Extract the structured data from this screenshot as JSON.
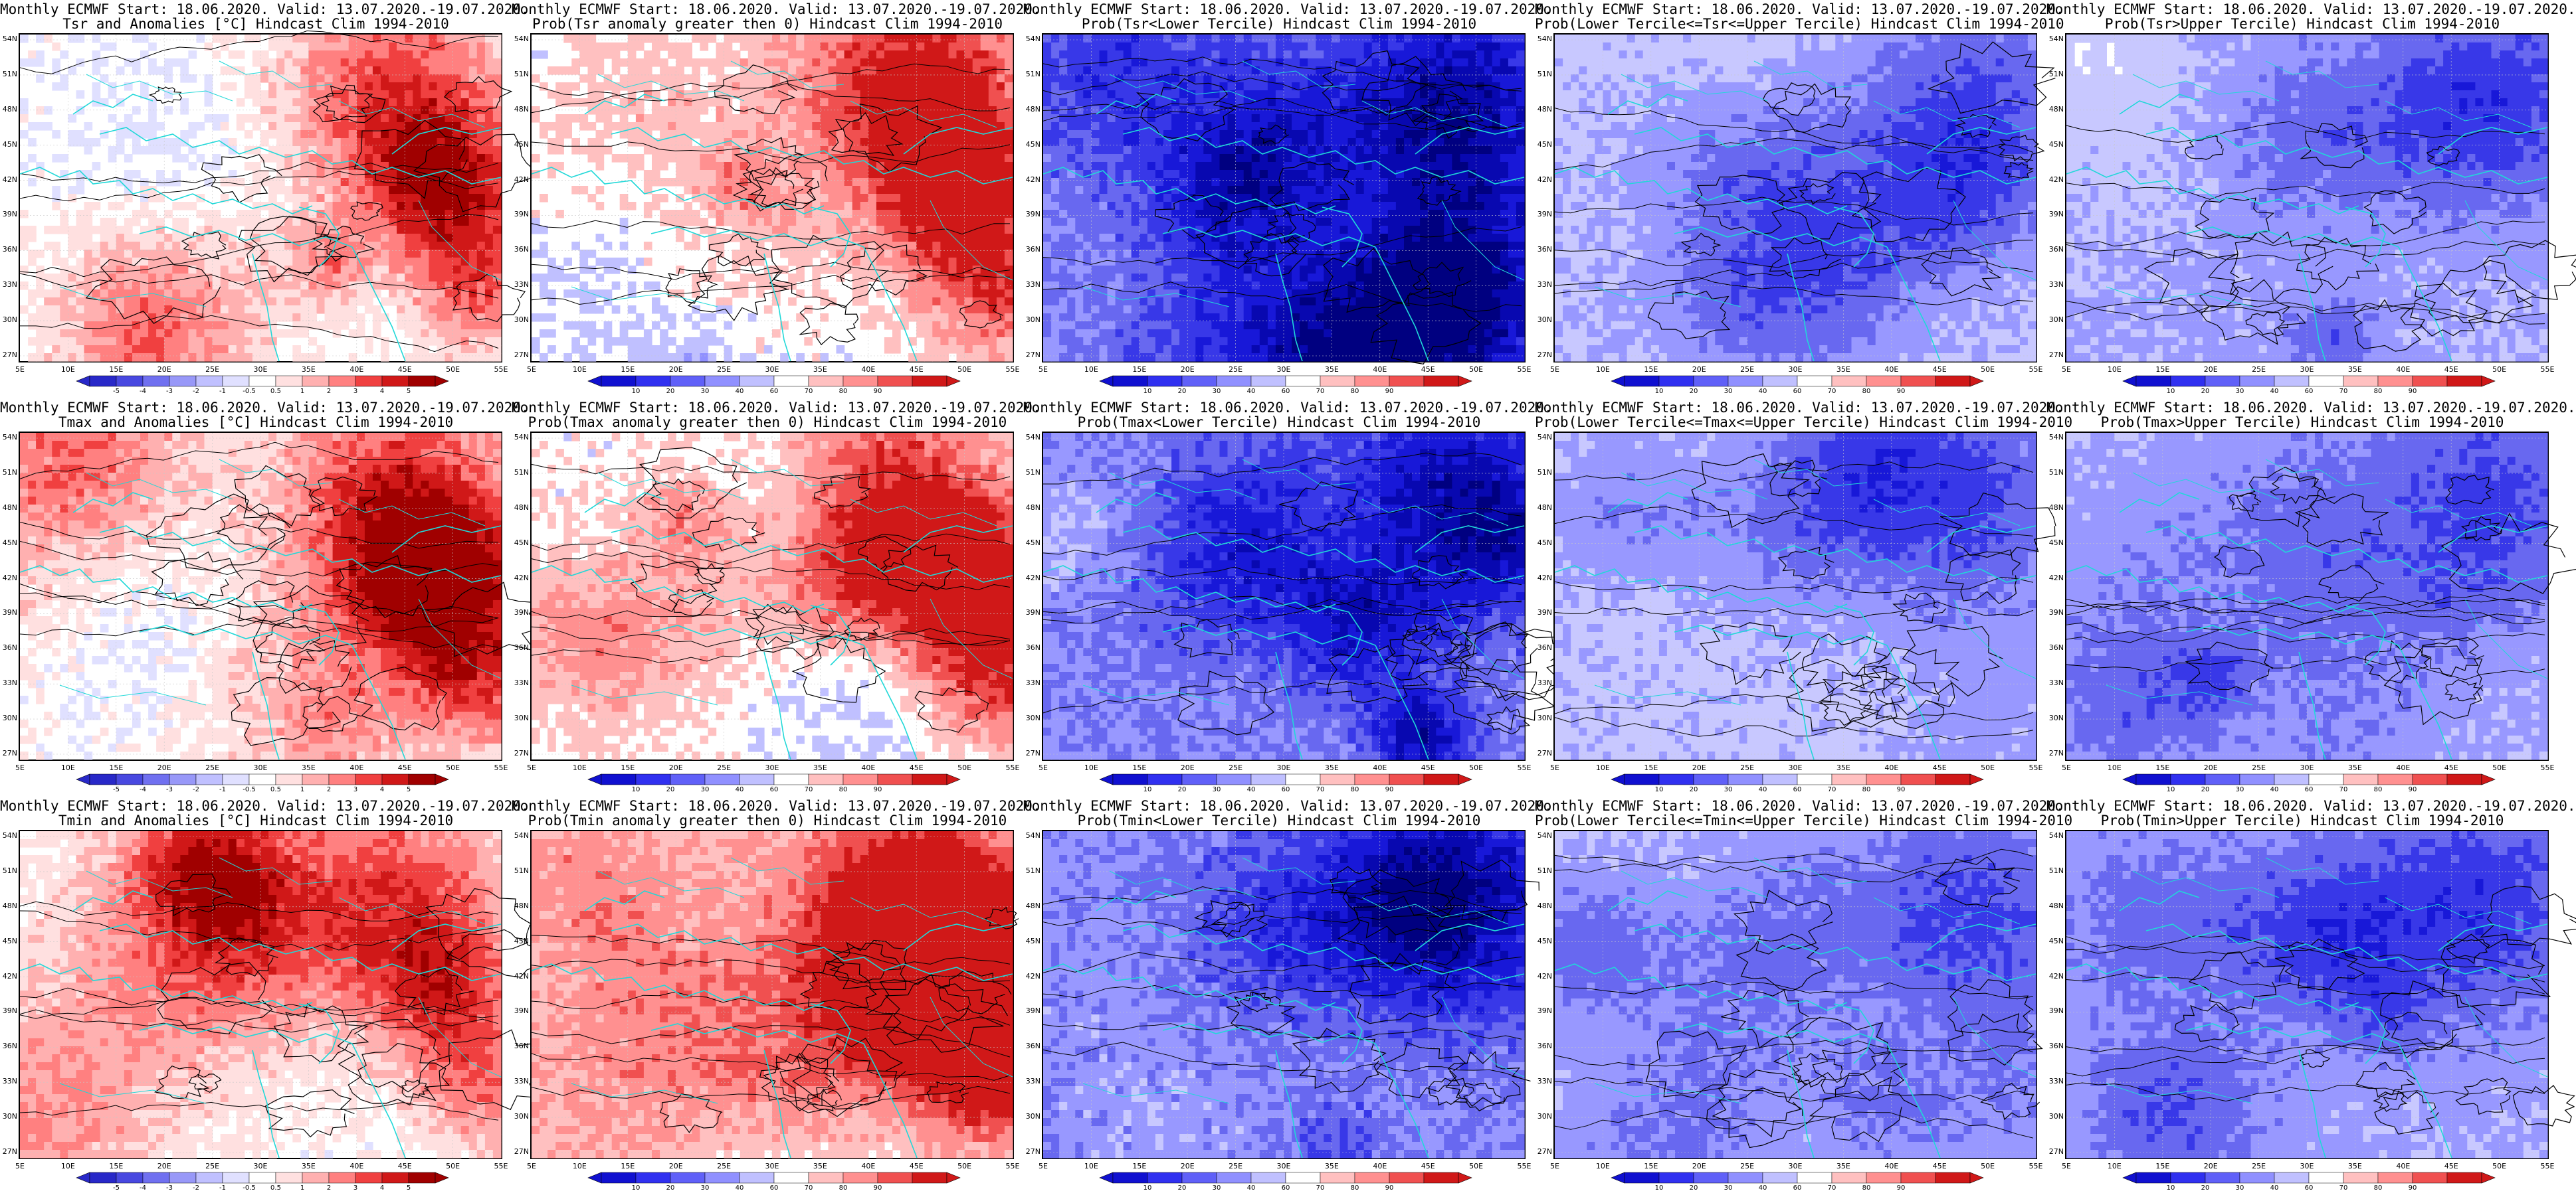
{
  "panels": [
    {
      "title1": "Monthly ECMWF Start: 18.06.2020. Valid: 13.07.2020.-19.07.2020.",
      "title2": "Tsr and Anomalies [°C] Hindcast Clim 1994-2010",
      "scale": "anomaly",
      "palette": "anom_red",
      "lowBias": 0.05,
      "peak": 0.8
    },
    {
      "title1": "Monthly ECMWF Start: 18.06.2020. Valid: 13.07.2020.-19.07.2020.",
      "title2": "Prob(Tsr anomaly greater then 0) Hindcast Clim 1994-2010",
      "scale": "prob",
      "palette": "prob_red",
      "lowBias": 0.1,
      "peak": 0.8
    },
    {
      "title1": "Monthly ECMWF Start: 18.06.2020. Valid: 13.07.2020.-19.07.2020.",
      "title2": "Prob(Tsr<Lower Tercile) Hindcast Clim 1994-2010",
      "scale": "prob",
      "palette": "blue_deep",
      "lowBias": 0.6,
      "peak": 0.95
    },
    {
      "title1": "Monthly ECMWF Start: 18.06.2020. Valid: 13.07.2020.-19.07.2020.",
      "title2": "Prob(Lower Tercile<=Tsr<=Upper Tercile) Hindcast Clim 1994-2010",
      "scale": "prob",
      "palette": "blue_mid",
      "lowBias": 0.3,
      "peak": 0.6
    },
    {
      "title1": "Monthly ECMWF Start: 18.06.2020. Valid: 13.07.2020.-19.07.2020.",
      "title2": "Prob(Tsr>Upper Tercile) Hindcast Clim 1994-2010",
      "scale": "prob",
      "palette": "blue_mix",
      "lowBias": 0.4,
      "peak": 0.6
    },
    {
      "title1": "Monthly ECMWF Start: 18.06.2020. Valid: 13.07.2020.-19.07.2020.",
      "title2": "Tmax and Anomalies [°C] Hindcast Clim 1994-2010",
      "scale": "anomaly",
      "palette": "anom_red",
      "lowBias": 0.05,
      "peak": 0.85
    },
    {
      "title1": "Monthly ECMWF Start: 18.06.2020. Valid: 13.07.2020.-19.07.2020.",
      "title2": "Prob(Tmax anomaly greater then 0) Hindcast Clim 1994-2010",
      "scale": "prob",
      "palette": "prob_red",
      "lowBias": 0.1,
      "peak": 0.8
    },
    {
      "title1": "Monthly ECMWF Start: 18.06.2020. Valid: 13.07.2020.-19.07.2020.",
      "title2": "Prob(Tmax<Lower Tercile) Hindcast Clim 1994-2010",
      "scale": "prob",
      "palette": "blue_deep",
      "lowBias": 0.6,
      "peak": 0.95
    },
    {
      "title1": "Monthly ECMWF Start: 18.06.2020. Valid: 13.07.2020.-19.07.2020.",
      "title2": "Prob(Lower Tercile<=Tmax<=Upper Tercile) Hindcast Clim 1994-2010",
      "scale": "prob",
      "palette": "blue_mid",
      "lowBias": 0.3,
      "peak": 0.6
    },
    {
      "title1": "Monthly ECMWF Start: 18.06.2020. Valid: 13.07.2020.-19.07.2020.",
      "title2": "Prob(Tmax>Upper Tercile) Hindcast Clim 1994-2010",
      "scale": "prob",
      "palette": "blue_mix",
      "lowBias": 0.4,
      "peak": 0.6
    },
    {
      "title1": "Monthly ECMWF Start: 18.06.2020. Valid: 13.07.2020.-19.07.2020.",
      "title2": "Tmin and Anomalies [°C] Hindcast Clim 1994-2010",
      "scale": "anomaly",
      "palette": "anom_red",
      "lowBias": 0.05,
      "peak": 0.75
    },
    {
      "title1": "Monthly ECMWF Start: 18.06.2020. Valid: 13.07.2020.-19.07.2020.",
      "title2": "Prob(Tmin anomaly greater then 0) Hindcast Clim 1994-2010",
      "scale": "prob",
      "palette": "prob_red",
      "lowBias": 0.1,
      "peak": 0.8
    },
    {
      "title1": "Monthly ECMWF Start: 18.06.2020. Valid: 13.07.2020.-19.07.2020.",
      "title2": "Prob(Tmin<Lower Tercile) Hindcast Clim 1994-2010",
      "scale": "prob",
      "palette": "blue_deep",
      "lowBias": 0.6,
      "peak": 0.95
    },
    {
      "title1": "Monthly ECMWF Start: 18.06.2020. Valid: 13.07.2020.-19.07.2020.",
      "title2": "Prob(Lower Tercile<=Tmin<=Upper Tercile) Hindcast Clim 1994-2010",
      "scale": "prob",
      "palette": "blue_mid",
      "lowBias": 0.3,
      "peak": 0.6
    },
    {
      "title1": "Monthly ECMWF Start: 18.06.2020. Valid: 13.07.2020.-19.07.2020.",
      "title2": "Prob(Tmin>Upper Tercile) Hindcast Clim 1994-2010",
      "scale": "prob",
      "palette": "blue_mix",
      "lowBias": 0.4,
      "peak": 0.6
    }
  ],
  "lat_labels": [
    "54N",
    "51N",
    "48N",
    "45N",
    "42N",
    "39N",
    "36N",
    "33N",
    "30N",
    "27N"
  ],
  "lon_labels": [
    "5E",
    "10E",
    "15E",
    "20E",
    "25E",
    "30E",
    "35E",
    "40E",
    "45E",
    "50E",
    "55E"
  ],
  "scales": {
    "anomaly": [
      "-5",
      "-4",
      "-3",
      "-2",
      "-1",
      "-0.5",
      "0.5",
      "1",
      "2",
      "3",
      "4",
      "5"
    ],
    "prob": [
      "10",
      "20",
      "30",
      "40",
      "60",
      "70",
      "80",
      "90"
    ]
  },
  "colors": {
    "land_white": "#ffffff",
    "coast": "#20d8d8",
    "contour": "#000000",
    "anom_ramp": [
      "#2828c8",
      "#4848e0",
      "#7070f0",
      "#9898f8",
      "#c0c0ff",
      "#e0e0ff",
      "#ffffff",
      "#ffe0e0",
      "#ffb0b0",
      "#ff8080",
      "#f04040",
      "#d01818",
      "#a00000"
    ],
    "prob_ramp": [
      "#1010d0",
      "#3030f0",
      "#6060f8",
      "#9090ff",
      "#c0c0ff",
      "#ffffff",
      "#ffc0c0",
      "#ff9090",
      "#f05050",
      "#d01818"
    ],
    "blue_ramp": [
      "#ffffff",
      "#c8c8ff",
      "#9898ff",
      "#6868f0",
      "#3838e8",
      "#1818d8",
      "#0808b0",
      "#000080"
    ]
  }
}
